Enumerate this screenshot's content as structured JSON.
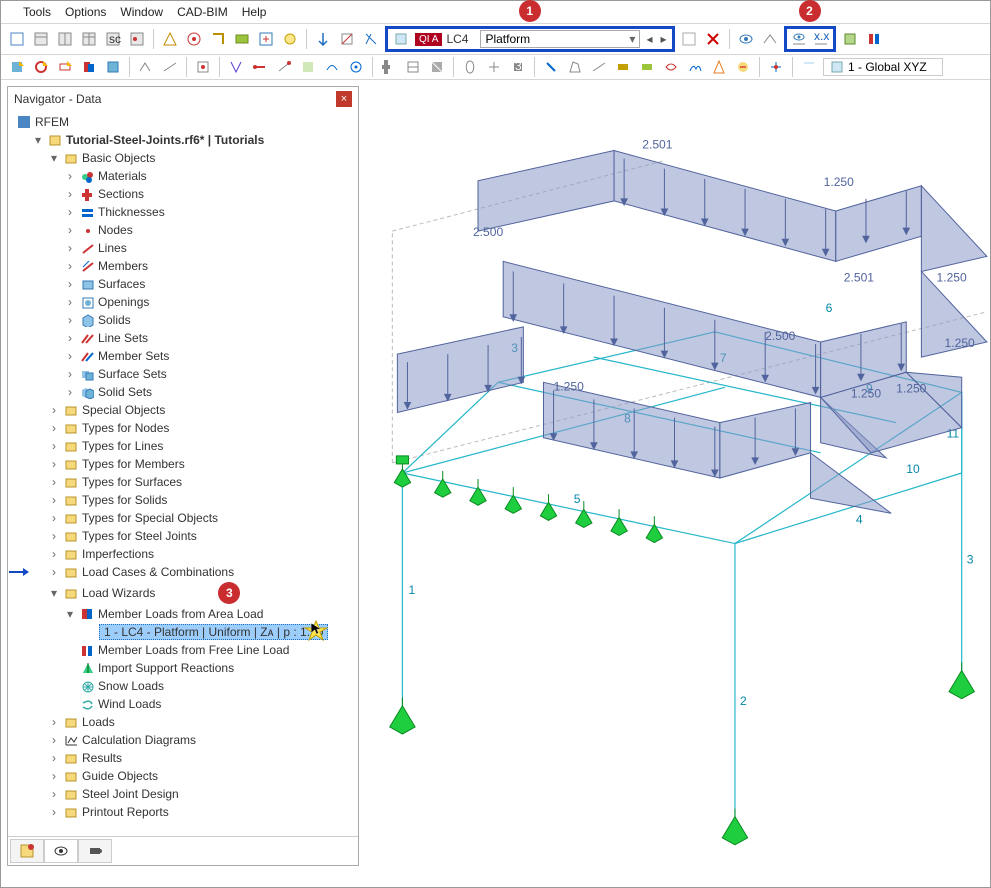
{
  "menus": [
    "Tools",
    "Options",
    "Window",
    "CAD-BIM",
    "Help"
  ],
  "callouts": {
    "c1": "1",
    "c2": "2",
    "c3": "3"
  },
  "loadcase": {
    "tag": "QI A",
    "code": "LC4",
    "name": "Platform"
  },
  "globalCoord": "1 - Global XYZ",
  "navigator": {
    "title": "Navigator - Data",
    "root": "RFEM",
    "file": "Tutorial-Steel-Joints.rf6* | Tutorials",
    "basic": "Basic Objects",
    "basicItems": [
      "Materials",
      "Sections",
      "Thicknesses",
      "Nodes",
      "Lines",
      "Members",
      "Surfaces",
      "Openings",
      "Solids",
      "Line Sets",
      "Member Sets",
      "Surface Sets",
      "Solid Sets"
    ],
    "groups": [
      "Special Objects",
      "Types for Nodes",
      "Types for Lines",
      "Types for Members",
      "Types for Surfaces",
      "Types for Solids",
      "Types for Special Objects",
      "Types for Steel Joints",
      "Imperfections",
      "Load Cases & Combinations"
    ],
    "loadWizards": "Load Wizards",
    "wiz1": "Member Loads from Area Load",
    "wizSel": "1 - LC4 - Platform | Uniform | Zᴀ | p : 1.50",
    "wizItems": [
      "Member Loads from Free Line Load",
      "Import Support Reactions",
      "Snow Loads",
      "Wind Loads"
    ],
    "remaining": [
      "Loads",
      "Calculation Diagrams",
      "Results",
      "Guide Objects",
      "Steel Joint Design",
      "Printout Reports"
    ]
  },
  "loads": {
    "v1": "2.501",
    "v2": "1.250",
    "v3": "2.500",
    "v4": "2.501",
    "v5": "1.250",
    "v6": "2.500",
    "v7": "1.250",
    "v8": "1.250",
    "v9": "1.250",
    "v10": "1.250"
  },
  "memberNums": {
    "m1": "1",
    "m2": "2",
    "m3": "3",
    "m4": "4",
    "m5": "5",
    "m6": "6",
    "m7": "7",
    "m8": "8",
    "m9": "9",
    "m10": "10",
    "m11": "11",
    "m12": "3"
  }
}
